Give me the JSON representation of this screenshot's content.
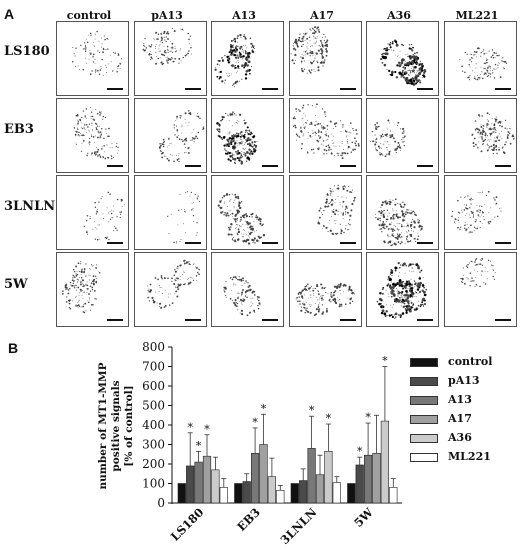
{
  "panel_a": {
    "letter": "A",
    "columns": [
      "control",
      "pA13",
      "A13",
      "A17",
      "A36",
      "ML221"
    ],
    "rows": [
      "LS180",
      "EB3",
      "3LNLN",
      "5W"
    ]
  },
  "panel_b": {
    "letter": "B",
    "ylabel_lines": [
      "number of MT1-MMP",
      "positive signals",
      "[% of control]"
    ]
  },
  "chart_data": {
    "type": "bar",
    "categories": [
      "LS180",
      "EB3",
      "3LNLN",
      "5W"
    ],
    "series": [
      {
        "name": "control",
        "values": [
          100,
          100,
          100,
          100
        ],
        "errors": [
          0,
          0,
          0,
          0
        ],
        "color": "#111111"
      },
      {
        "name": "pA13",
        "values": [
          190,
          110,
          115,
          195
        ],
        "errors": [
          170,
          40,
          60,
          40
        ],
        "color": "#4a4a4a"
      },
      {
        "name": "A13",
        "values": [
          210,
          255,
          280,
          245
        ],
        "errors": [
          55,
          130,
          165,
          165
        ],
        "color": "#787878"
      },
      {
        "name": "A17",
        "values": [
          240,
          300,
          145,
          255
        ],
        "errors": [
          110,
          155,
          100,
          195
        ],
        "color": "#a0a0a0"
      },
      {
        "name": "A36",
        "values": [
          170,
          135,
          265,
          420
        ],
        "errors": [
          65,
          95,
          140,
          280
        ],
        "color": "#cbcbcb"
      },
      {
        "name": "ML221",
        "values": [
          80,
          65,
          105,
          80
        ],
        "errors": [
          45,
          25,
          30,
          45
        ],
        "color": "#ffffff"
      }
    ],
    "significance": [
      {
        "category": "LS180",
        "series": "pA13",
        "label": "*"
      },
      {
        "category": "LS180",
        "series": "A13",
        "label": "*"
      },
      {
        "category": "LS180",
        "series": "A17",
        "label": "*"
      },
      {
        "category": "EB3",
        "series": "A13",
        "label": "*"
      },
      {
        "category": "EB3",
        "series": "A17",
        "label": "*"
      },
      {
        "category": "3LNLN",
        "series": "A13",
        "label": "*"
      },
      {
        "category": "3LNLN",
        "series": "A36",
        "label": "*"
      },
      {
        "category": "5W",
        "series": "pA13",
        "label": "*"
      },
      {
        "category": "5W",
        "series": "A13",
        "label": "*"
      },
      {
        "category": "5W",
        "series": "A36",
        "label": "*"
      }
    ],
    "ylim": [
      0,
      800
    ],
    "yticks": [
      0,
      100,
      200,
      300,
      400,
      500,
      600,
      700,
      800
    ],
    "legend_position": "right"
  }
}
